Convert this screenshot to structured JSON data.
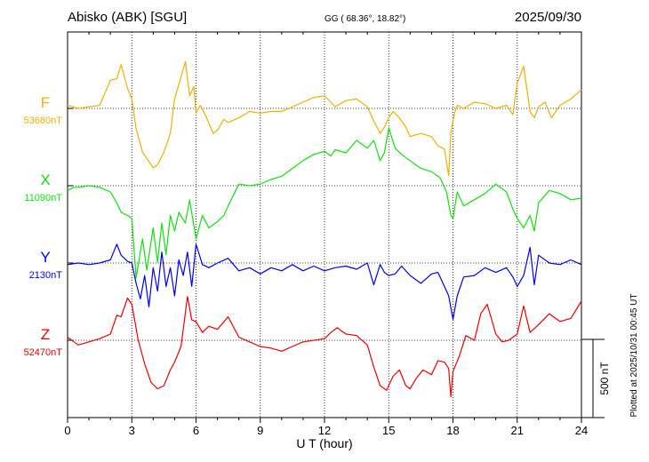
{
  "chart_data": {
    "type": "line",
    "title": "Abisko (ABK)  [SGU]",
    "coords": "GG ( 68.36°,  18.82°)",
    "date": "2025/09/30",
    "xlabel": "U T (hour)",
    "xlim": [
      0,
      24
    ],
    "xticks": [
      "0",
      "3",
      "6",
      "9",
      "12",
      "15",
      "18",
      "21",
      "24"
    ],
    "scale_label": "500 nT",
    "scale_nT": 500,
    "footer": "Plotted at 2025/10/31 00:45 UT",
    "grid": true,
    "colors": {
      "F": "#f0b000",
      "X": "#10e010",
      "Y": "#0000ee",
      "Z": "#ee0000"
    },
    "series": [
      {
        "name": "F",
        "baseline_label": "53680nT",
        "baseline": 53680,
        "hours": [
          0,
          0.5,
          1.0,
          1.5,
          2.0,
          2.3,
          2.5,
          2.8,
          3.0,
          3.2,
          3.5,
          3.8,
          4.0,
          4.2,
          4.5,
          4.8,
          5.0,
          5.3,
          5.5,
          5.7,
          5.9,
          6.0,
          6.2,
          6.5,
          6.8,
          7.0,
          7.3,
          7.5,
          8.0,
          8.5,
          9.0,
          9.5,
          10.0,
          10.5,
          11.0,
          11.5,
          12.0,
          12.3,
          12.5,
          13.0,
          13.5,
          14.0,
          14.3,
          14.6,
          14.8,
          15.0,
          15.2,
          15.5,
          15.8,
          16.0,
          16.5,
          17.0,
          17.3,
          17.6,
          17.8,
          17.9,
          18.0,
          18.1,
          18.2,
          18.5,
          19.0,
          19.5,
          20.0,
          20.5,
          20.8,
          21.0,
          21.3,
          21.6,
          21.8,
          22.0,
          22.3,
          22.6,
          23.0,
          23.5,
          24.0
        ],
        "values": [
          53700,
          53680,
          53690,
          53700,
          53860,
          53870,
          53960,
          53810,
          53740,
          53550,
          53400,
          53340,
          53300,
          53320,
          53400,
          53520,
          53740,
          53880,
          53980,
          53760,
          53820,
          53650,
          53700,
          53620,
          53520,
          53540,
          53610,
          53590,
          53620,
          53660,
          53650,
          53660,
          53660,
          53690,
          53720,
          53750,
          53760,
          53720,
          53690,
          53730,
          53740,
          53690,
          53600,
          53520,
          53560,
          53620,
          53660,
          53620,
          53560,
          53500,
          53520,
          53500,
          53440,
          53420,
          53250,
          53520,
          53600,
          53660,
          53700,
          53680,
          53720,
          53710,
          53680,
          53700,
          53640,
          53840,
          53950,
          53660,
          53620,
          53690,
          53720,
          53620,
          53700,
          53740,
          53800
        ]
      },
      {
        "name": "X",
        "baseline_label": "11090nT",
        "baseline": 11090,
        "hours": [
          0,
          0.3,
          0.5,
          1.0,
          1.5,
          2.0,
          2.3,
          2.5,
          2.8,
          3.0,
          3.2,
          3.5,
          3.7,
          4.0,
          4.2,
          4.4,
          4.6,
          4.8,
          5.0,
          5.2,
          5.5,
          5.7,
          6.0,
          6.3,
          6.6,
          7.0,
          7.3,
          7.5,
          8.0,
          8.5,
          9.0,
          9.5,
          10.0,
          10.5,
          11.0,
          11.5,
          12.0,
          12.3,
          12.5,
          13.0,
          13.5,
          14.0,
          14.3,
          14.6,
          14.8,
          15.0,
          15.3,
          15.6,
          16.0,
          16.5,
          17.0,
          17.4,
          17.7,
          17.9,
          18.0,
          18.2,
          18.5,
          19.0,
          19.5,
          20.0,
          20.5,
          20.8,
          21.0,
          21.3,
          21.6,
          21.8,
          22.0,
          22.5,
          23.0,
          23.5,
          24.0
        ],
        "values": [
          11060,
          11080,
          11080,
          11090,
          11080,
          11050,
          10980,
          10920,
          10900,
          10880,
          10500,
          10750,
          10550,
          10820,
          10600,
          10850,
          10650,
          10900,
          10800,
          10920,
          10850,
          11000,
          10750,
          10900,
          10820,
          10860,
          10900,
          10960,
          11100,
          11090,
          11100,
          11130,
          11150,
          11200,
          11250,
          11290,
          11310,
          11280,
          11320,
          11300,
          11380,
          11330,
          11380,
          11250,
          11300,
          11460,
          11330,
          11290,
          11250,
          11200,
          11180,
          11140,
          11050,
          10900,
          10880,
          11050,
          10960,
          11000,
          11040,
          11100,
          11050,
          10940,
          10880,
          10820,
          10900,
          10800,
          10980,
          11060,
          11040,
          11000,
          11010
        ]
      },
      {
        "name": "Y",
        "baseline_label": "2130nT",
        "baseline": 2130,
        "hours": [
          0,
          0.5,
          1.0,
          1.5,
          2.0,
          2.3,
          2.5,
          2.8,
          3.0,
          3.2,
          3.4,
          3.6,
          3.8,
          4.0,
          4.2,
          4.4,
          4.6,
          4.8,
          5.0,
          5.2,
          5.4,
          5.6,
          5.8,
          6.0,
          6.3,
          6.6,
          7.0,
          7.5,
          8.0,
          8.5,
          9.0,
          9.5,
          10.0,
          10.5,
          11.0,
          11.5,
          12.0,
          12.5,
          13.0,
          13.5,
          14.0,
          14.3,
          14.6,
          14.8,
          15.0,
          15.3,
          15.6,
          16.0,
          16.5,
          17.0,
          17.3,
          17.6,
          17.8,
          18.0,
          18.2,
          18.5,
          19.0,
          19.5,
          20.0,
          20.5,
          20.8,
          21.0,
          21.3,
          21.6,
          21.8,
          22.0,
          22.5,
          23.0,
          23.5,
          24.0
        ],
        "values": [
          2120,
          2130,
          2120,
          2130,
          2150,
          2250,
          2180,
          2140,
          2130,
          2000,
          1900,
          2050,
          1850,
          2100,
          1950,
          2200,
          1980,
          2100,
          1920,
          2150,
          2050,
          2200,
          1980,
          2250,
          2120,
          2100,
          2130,
          2160,
          2080,
          2100,
          2060,
          2100,
          2080,
          2120,
          2080,
          2110,
          2080,
          2100,
          2110,
          2090,
          2130,
          1990,
          2120,
          2070,
          2050,
          2060,
          2110,
          2050,
          2000,
          2060,
          2070,
          1980,
          1920,
          1770,
          1920,
          2040,
          2050,
          2100,
          2070,
          2100,
          2040,
          1980,
          2050,
          2230,
          1990,
          2180,
          2130,
          2120,
          2150,
          2120
        ]
      },
      {
        "name": "Z",
        "baseline_label": "52470nT",
        "baseline": 52470,
        "hours": [
          0,
          0.3,
          0.5,
          1.0,
          1.5,
          2.0,
          2.3,
          2.5,
          2.8,
          3.0,
          3.3,
          3.6,
          3.9,
          4.2,
          4.5,
          4.8,
          5.0,
          5.3,
          5.6,
          5.8,
          6.0,
          6.3,
          6.6,
          7.0,
          7.5,
          8.0,
          8.5,
          9.0,
          9.5,
          10.0,
          10.5,
          11.0,
          11.5,
          12.0,
          12.3,
          12.6,
          13.0,
          13.5,
          14.0,
          14.3,
          14.6,
          14.9,
          15.2,
          15.5,
          15.8,
          16.0,
          16.3,
          16.6,
          17.0,
          17.3,
          17.6,
          17.8,
          17.9,
          18.0,
          18.3,
          18.6,
          19.0,
          19.3,
          19.6,
          20.0,
          20.3,
          20.6,
          21.0,
          21.3,
          21.6,
          22.0,
          22.5,
          23.0,
          23.5,
          24.0
        ],
        "values": [
          52490,
          52460,
          52440,
          52460,
          52480,
          52510,
          52630,
          52620,
          52740,
          52700,
          52470,
          52320,
          52200,
          52160,
          52180,
          52280,
          52330,
          52430,
          52750,
          52600,
          52590,
          52520,
          52560,
          52540,
          52620,
          52490,
          52460,
          52430,
          52420,
          52400,
          52430,
          52460,
          52470,
          52480,
          52520,
          52550,
          52510,
          52500,
          52440,
          52300,
          52180,
          52150,
          52240,
          52280,
          52180,
          52160,
          52230,
          52280,
          52250,
          52340,
          52330,
          52290,
          52110,
          52270,
          52370,
          52500,
          52470,
          52640,
          52700,
          52510,
          52460,
          52470,
          52510,
          52690,
          52520,
          52570,
          52640,
          52590,
          52610,
          52720
        ]
      }
    ]
  }
}
